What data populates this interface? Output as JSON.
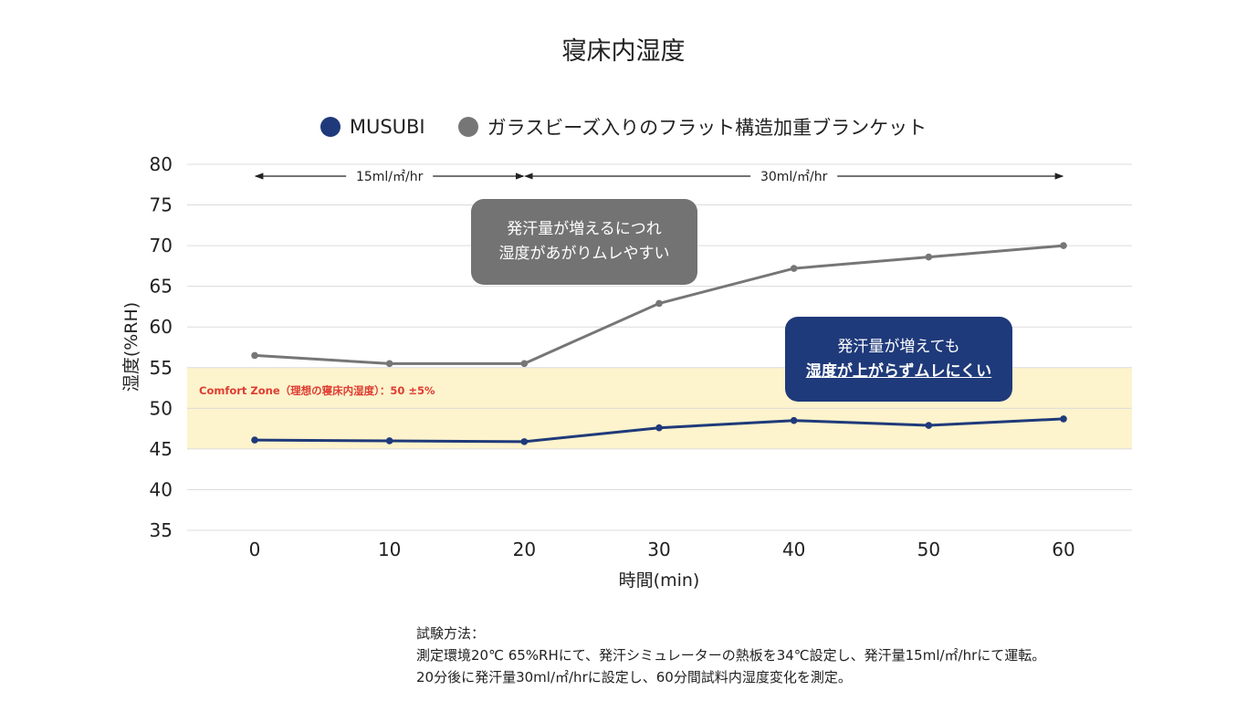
{
  "chart_data": {
    "type": "line",
    "title": "寝床内湿度",
    "xlabel": "時間(min)",
    "ylabel": "湿度(%RH)",
    "x": [
      0,
      10,
      20,
      30,
      40,
      50,
      60
    ],
    "xticks": [
      "0",
      "10",
      "20",
      "30",
      "40",
      "50",
      "60"
    ],
    "ylim": [
      35,
      80
    ],
    "yticks": [
      "35",
      "40",
      "45",
      "50",
      "55",
      "60",
      "65",
      "70",
      "75",
      "80"
    ],
    "grid": true,
    "legend_position": "top",
    "series": [
      {
        "name": "MUSUBI",
        "color": "#1f3a7a",
        "values": [
          46.1,
          46.0,
          45.9,
          47.6,
          48.5,
          47.9,
          48.7
        ]
      },
      {
        "name": "ガラスビーズ入りのフラット構造加重ブランケット",
        "color": "#767676",
        "values": [
          56.5,
          55.5,
          55.5,
          62.9,
          67.2,
          68.6,
          70.0
        ]
      }
    ],
    "comfort_zone": {
      "label": "Comfort Zone（理想の寝床内湿度）：50 ±5%",
      "range": [
        45,
        55
      ],
      "color": "#fdf3cc",
      "label_color": "#e03c31"
    },
    "phases": [
      {
        "label": "15ml/㎡/hr",
        "from": 0,
        "to": 20
      },
      {
        "label": "30ml/㎡/hr",
        "from": 20,
        "to": 60
      }
    ],
    "annotations": {
      "gray_bubble": [
        "発汗量が増えるにつれ",
        "湿度があがりムレやすい"
      ],
      "blue_bubble": [
        "発汗量が増えても",
        "湿度が上がらずムレにくい"
      ]
    }
  },
  "method": {
    "heading": "試験方法：",
    "line1": "測定環境20℃ 65%RHにて、発汗シミュレーターの熱板を34℃設定し、発汗量15ml/㎡/hrにて運転。",
    "line2": "20分後に発汗量30ml/㎡/hrに設定し、60分間試料内湿度変化を測定。"
  }
}
